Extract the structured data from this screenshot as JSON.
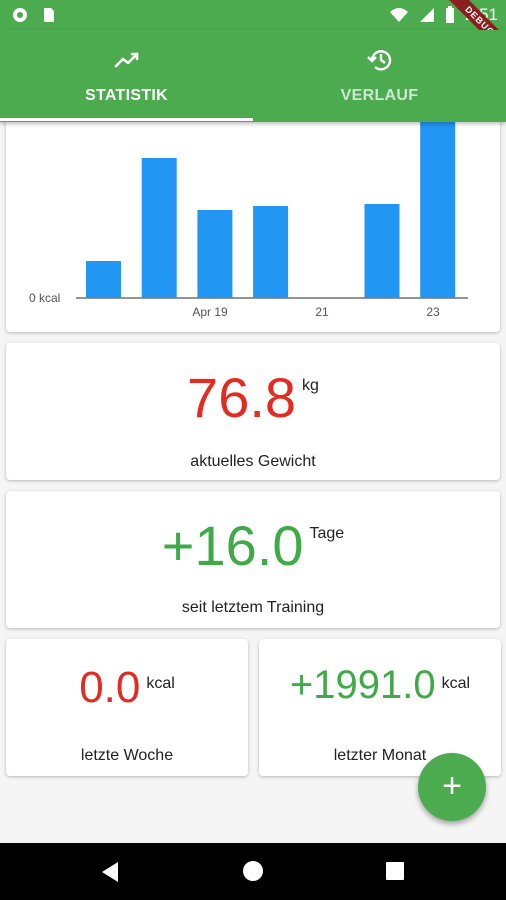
{
  "status_bar": {
    "time": "2:51",
    "icons": [
      "notification-icon",
      "sim-card-icon",
      "wifi-icon",
      "signal-icon",
      "battery-icon"
    ]
  },
  "debug_banner": "DEBUG",
  "tabs": [
    {
      "label": "STATISTIK",
      "icon": "trending-up-icon",
      "active": true
    },
    {
      "label": "VERLAUF",
      "icon": "history-icon",
      "active": false
    }
  ],
  "chart_data": {
    "type": "bar",
    "x_tick_labels": [
      "Apr 19",
      "21",
      "23"
    ],
    "y_tick_labels": [
      "0 kcal"
    ],
    "values": [
      37,
      140,
      88,
      92,
      0,
      94,
      178
    ],
    "ylim": [
      0,
      178
    ],
    "grid": false
  },
  "weight": {
    "value": "76.8",
    "unit": "kg",
    "label": "aktuelles Gewicht"
  },
  "training": {
    "value": "+16.0",
    "unit": "Tage",
    "label": "seit letztem Training"
  },
  "week": {
    "value": "0.0",
    "unit": "kcal",
    "label": "letzte Woche"
  },
  "month": {
    "value": "+1991.0",
    "unit": "kcal",
    "label": "letzter Monat"
  },
  "fab": {
    "label": "+"
  },
  "colors": {
    "primary": "#4cab4f",
    "bar": "#2196f3",
    "negative": "#e52a22",
    "positive": "#3faa48"
  }
}
